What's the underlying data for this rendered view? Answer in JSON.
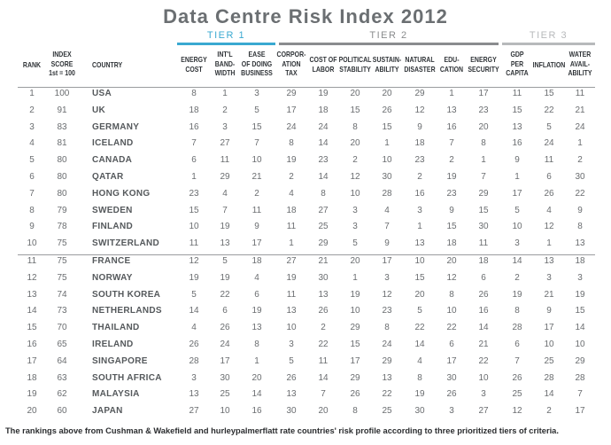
{
  "title": "Data Centre Risk Index 2012",
  "tiers": [
    {
      "label": "TIER 1",
      "color": "#3aa9d1"
    },
    {
      "label": "TIER 2",
      "color": "#8a8c8e"
    },
    {
      "label": "TIER 3",
      "color": "#b7b9bb"
    }
  ],
  "columns": [
    {
      "key": "rank",
      "label": "RANK"
    },
    {
      "key": "score",
      "label": "INDEX\nSCORE\n1st = 100"
    },
    {
      "key": "country",
      "label": "COUNTRY"
    },
    {
      "key": "energy_cost",
      "label": "ENERGY\nCOST"
    },
    {
      "key": "bandwidth",
      "label": "INT'L\nBAND-\nWIDTH"
    },
    {
      "key": "ease",
      "label": "EASE\nOF DOING\nBUSINESS"
    },
    {
      "key": "corp_tax",
      "label": "CORPOR-\nATION\nTAX"
    },
    {
      "key": "labor",
      "label": "COST OF\nLABOR"
    },
    {
      "key": "political",
      "label": "POLITICAL\nSTABILITY"
    },
    {
      "key": "sustain",
      "label": "SUSTAIN-\nABILITY"
    },
    {
      "key": "disaster",
      "label": "NATURAL\nDISASTER"
    },
    {
      "key": "education",
      "label": "EDU-\nCATION"
    },
    {
      "key": "energy_sec",
      "label": "ENERGY\nSECURITY"
    },
    {
      "key": "gdp",
      "label": "GDP\nPER\nCAPITA"
    },
    {
      "key": "inflation",
      "label": "INFLATION"
    },
    {
      "key": "water",
      "label": "WATER\nAVAIL-\nABILITY"
    }
  ],
  "rows": [
    [
      "1",
      "100",
      "USA",
      "8",
      "1",
      "3",
      "29",
      "19",
      "20",
      "20",
      "29",
      "1",
      "17",
      "11",
      "15",
      "11"
    ],
    [
      "2",
      "91",
      "UK",
      "18",
      "2",
      "5",
      "17",
      "18",
      "15",
      "26",
      "12",
      "13",
      "23",
      "15",
      "22",
      "21"
    ],
    [
      "3",
      "83",
      "GERMANY",
      "16",
      "3",
      "15",
      "24",
      "24",
      "8",
      "15",
      "9",
      "16",
      "20",
      "13",
      "5",
      "24"
    ],
    [
      "4",
      "81",
      "ICELAND",
      "7",
      "27",
      "7",
      "8",
      "14",
      "20",
      "1",
      "18",
      "7",
      "8",
      "16",
      "24",
      "1"
    ],
    [
      "5",
      "80",
      "CANADA",
      "6",
      "11",
      "10",
      "19",
      "23",
      "2",
      "10",
      "23",
      "2",
      "1",
      "9",
      "11",
      "2"
    ],
    [
      "6",
      "80",
      "QATAR",
      "1",
      "29",
      "21",
      "2",
      "14",
      "12",
      "30",
      "2",
      "19",
      "7",
      "1",
      "6",
      "30"
    ],
    [
      "7",
      "80",
      "HONG KONG",
      "23",
      "4",
      "2",
      "4",
      "8",
      "10",
      "28",
      "16",
      "23",
      "29",
      "17",
      "26",
      "22"
    ],
    [
      "8",
      "79",
      "SWEDEN",
      "15",
      "7",
      "11",
      "18",
      "27",
      "3",
      "4",
      "3",
      "9",
      "15",
      "5",
      "4",
      "9"
    ],
    [
      "9",
      "78",
      "FINLAND",
      "10",
      "19",
      "9",
      "11",
      "25",
      "3",
      "7",
      "1",
      "15",
      "30",
      "10",
      "12",
      "8"
    ],
    [
      "10",
      "75",
      "SWITZERLAND",
      "11",
      "13",
      "17",
      "1",
      "29",
      "5",
      "9",
      "13",
      "18",
      "11",
      "3",
      "1",
      "13"
    ],
    [
      "11",
      "75",
      "FRANCE",
      "12",
      "5",
      "18",
      "27",
      "21",
      "20",
      "17",
      "10",
      "20",
      "18",
      "14",
      "13",
      "18"
    ],
    [
      "12",
      "75",
      "NORWAY",
      "19",
      "19",
      "4",
      "19",
      "30",
      "1",
      "3",
      "15",
      "12",
      "6",
      "2",
      "3",
      "3"
    ],
    [
      "13",
      "74",
      "SOUTH KOREA",
      "5",
      "22",
      "6",
      "11",
      "13",
      "19",
      "12",
      "20",
      "8",
      "26",
      "19",
      "21",
      "19"
    ],
    [
      "14",
      "73",
      "NETHERLANDS",
      "14",
      "6",
      "19",
      "13",
      "26",
      "10",
      "23",
      "5",
      "10",
      "16",
      "8",
      "9",
      "15"
    ],
    [
      "15",
      "70",
      "THAILAND",
      "4",
      "26",
      "13",
      "10",
      "2",
      "29",
      "8",
      "22",
      "22",
      "14",
      "28",
      "17",
      "14"
    ],
    [
      "16",
      "65",
      "IRELAND",
      "26",
      "24",
      "8",
      "3",
      "22",
      "15",
      "24",
      "14",
      "6",
      "21",
      "6",
      "10",
      "10"
    ],
    [
      "17",
      "64",
      "SINGAPORE",
      "28",
      "17",
      "1",
      "5",
      "11",
      "17",
      "29",
      "4",
      "17",
      "22",
      "7",
      "25",
      "29"
    ],
    [
      "18",
      "63",
      "SOUTH AFRICA",
      "3",
      "30",
      "20",
      "26",
      "14",
      "29",
      "13",
      "8",
      "30",
      "10",
      "26",
      "28",
      "28"
    ],
    [
      "19",
      "62",
      "MALAYSIA",
      "13",
      "25",
      "14",
      "13",
      "7",
      "26",
      "22",
      "19",
      "26",
      "3",
      "25",
      "14",
      "7"
    ],
    [
      "20",
      "60",
      "JAPAN",
      "27",
      "10",
      "16",
      "30",
      "20",
      "8",
      "25",
      "30",
      "3",
      "27",
      "12",
      "2",
      "17"
    ]
  ],
  "footnote": "The rankings above from Cushman & Wakefield and hurleypalmerflatt rate countries' risk profile according to three prioritized tiers of criteria."
}
